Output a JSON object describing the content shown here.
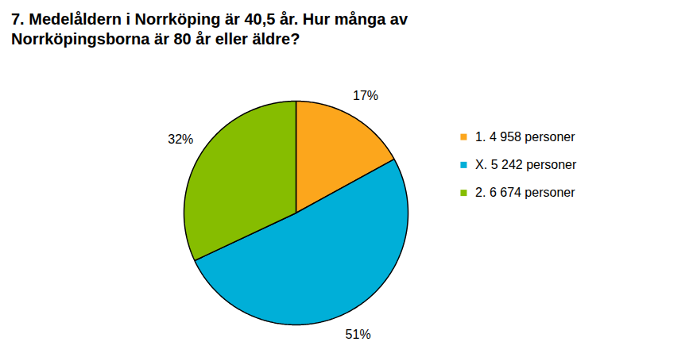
{
  "chart_data": {
    "type": "pie",
    "title": "7. Medelåldern i Norrköping är 40,5 år. Hur många av\nNorrköpingsborna är 80 år eller äldre?",
    "categories": [
      "1. 4 958 personer",
      "X. 5 242 personer",
      "2. 6 674 personer"
    ],
    "values": [
      17,
      51,
      32
    ],
    "value_labels": [
      "17%",
      "51%",
      "32%"
    ],
    "colors": [
      "#fca61c",
      "#00afd8",
      "#86bd00"
    ],
    "data_labels": true,
    "legend": "right"
  }
}
